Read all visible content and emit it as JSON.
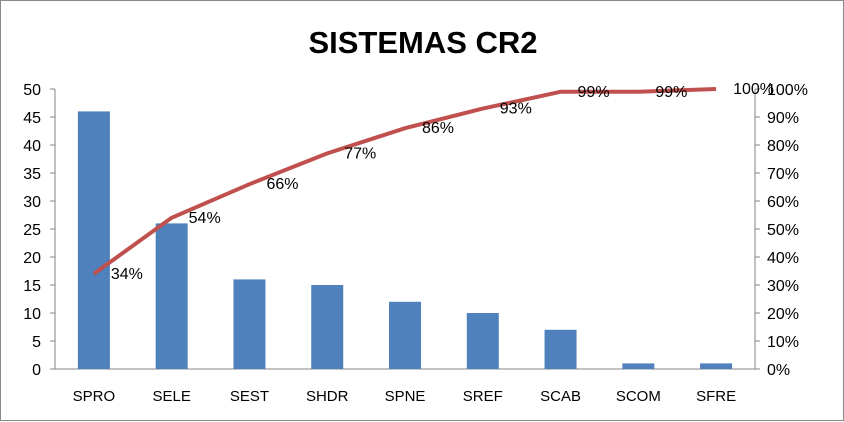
{
  "chart_data": {
    "type": "bar+line",
    "title": "SISTEMAS CR2",
    "categories": [
      "SPRO",
      "SELE",
      "SEST",
      "SHDR",
      "SPNE",
      "SREF",
      "SCAB",
      "SCOM",
      "SFRE"
    ],
    "series": [
      {
        "values": [
          46,
          26,
          16,
          15,
          12,
          10,
          7,
          1,
          1
        ],
        "type": "bar",
        "axis": "left",
        "color": "#4f81bd"
      },
      {
        "values": [
          34,
          54,
          66,
          77,
          86,
          93,
          99,
          99,
          100
        ],
        "type": "line",
        "axis": "right",
        "unit": "%",
        "color": "#c0504d"
      }
    ],
    "y_left": {
      "min": 0,
      "max": 50,
      "step": 5
    },
    "y_right": {
      "min": 0,
      "max": 100,
      "step": 10,
      "unit": "%"
    },
    "data_labels": [
      "34%",
      "54%",
      "66%",
      "77%",
      "86%",
      "93%",
      "99%",
      "99%",
      "100%"
    ],
    "grid": false,
    "legend": "none"
  }
}
